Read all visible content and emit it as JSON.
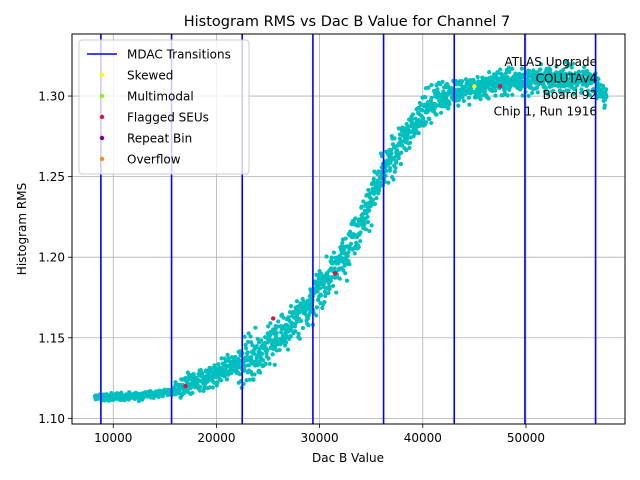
{
  "chart_data": {
    "type": "scatter",
    "title": "Histogram RMS vs Dac B Value for Channel 7",
    "xlabel": "Dac B Value",
    "ylabel": "Histogram RMS",
    "xlim": [
      6000,
      59600
    ],
    "ylim": [
      1.0965,
      1.3385
    ],
    "x_ticks": [
      10000,
      20000,
      30000,
      40000,
      50000
    ],
    "x_tick_labels": [
      "10000",
      "20000",
      "30000",
      "40000",
      "50000"
    ],
    "y_ticks": [
      1.1,
      1.15,
      1.2,
      1.25,
      1.3
    ],
    "y_tick_labels": [
      "1.10",
      "1.15",
      "1.20",
      "1.25",
      "1.30"
    ],
    "grid": true,
    "legend_position": "top-left",
    "legend": [
      {
        "label": "MDAC Transitions",
        "kind": "line",
        "color": "#0000ff"
      },
      {
        "label": "Skewed",
        "kind": "marker",
        "color": "#ffff00"
      },
      {
        "label": "Multimodal",
        "kind": "marker",
        "color": "#7fff00"
      },
      {
        "label": "Flagged SEUs",
        "kind": "marker",
        "color": "#dc143c"
      },
      {
        "label": "Repeat Bin",
        "kind": "marker",
        "color": "#800080"
      },
      {
        "label": "Overflow",
        "kind": "marker",
        "color": "#ff8c00"
      }
    ],
    "mdac_transitions": [
      8800,
      15650,
      22500,
      29350,
      36200,
      43050,
      49900,
      56750
    ],
    "data_color": "#00bfbf",
    "data_trend": {
      "x": [
        8200,
        10000,
        12000,
        14000,
        16000,
        18000,
        20000,
        22000,
        24000,
        26000,
        28000,
        30000,
        32000,
        34000,
        36000,
        38000,
        40000,
        42000,
        44000,
        46000,
        48000,
        50000,
        52000,
        54000,
        56000,
        57800
      ],
      "y": [
        1.113,
        1.113,
        1.114,
        1.115,
        1.117,
        1.122,
        1.128,
        1.134,
        1.14,
        1.15,
        1.163,
        1.18,
        1.198,
        1.222,
        1.25,
        1.272,
        1.29,
        1.3,
        1.304,
        1.307,
        1.309,
        1.31,
        1.311,
        1.311,
        1.31,
        1.3
      ]
    },
    "flagged_points": [
      {
        "label": "Flagged SEUs",
        "x": 17000,
        "y": 1.12
      },
      {
        "label": "Flagged SEUs",
        "x": 25500,
        "y": 1.162
      },
      {
        "label": "Flagged SEUs",
        "x": 31500,
        "y": 1.19
      },
      {
        "label": "Flagged SEUs",
        "x": 47500,
        "y": 1.306
      },
      {
        "label": "Skewed",
        "x": 45000,
        "y": 1.306
      }
    ],
    "annotation_lines": [
      "ATLAS Upgrade",
      "COLUTAv4",
      "Board 92",
      "Chip 1, Run 1916"
    ]
  }
}
